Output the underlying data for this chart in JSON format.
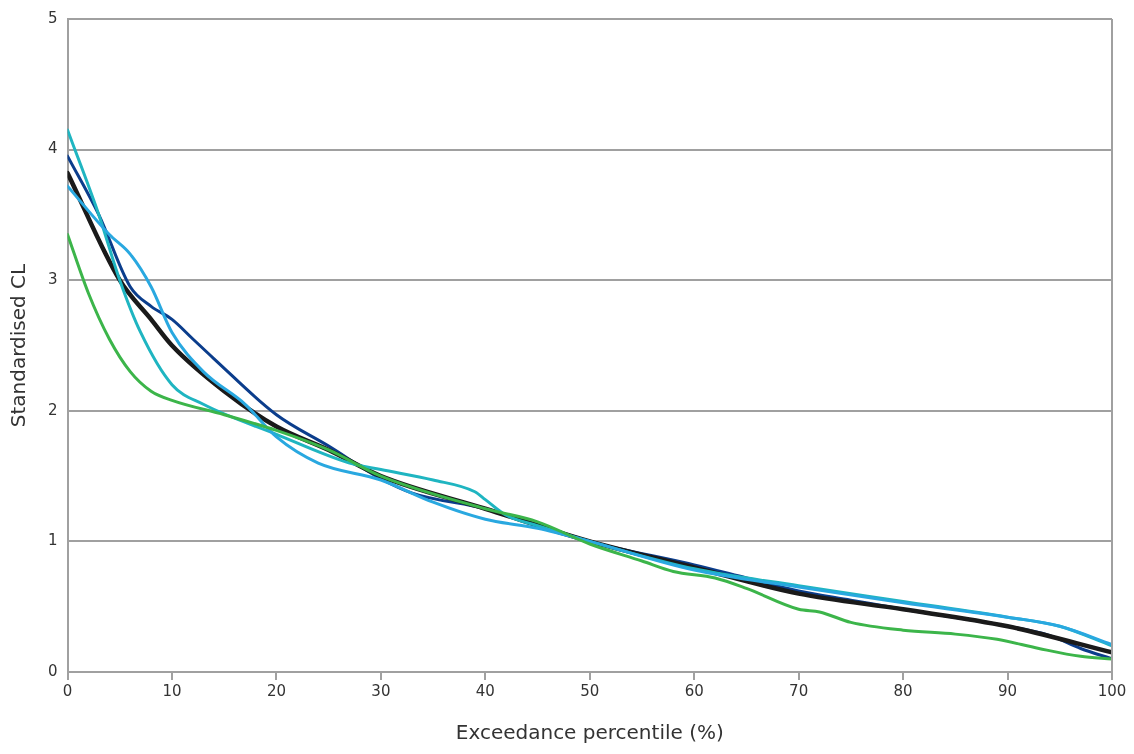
{
  "chart_data": {
    "type": "line",
    "xlabel": "Exceedance percentile (%)",
    "ylabel": "Standardised CL",
    "xlim": [
      0,
      100
    ],
    "xticks": [
      0,
      10,
      20,
      30,
      40,
      50,
      60,
      70,
      80,
      90,
      100
    ],
    "ylim": [
      0,
      5
    ],
    "yticks": [
      0,
      1,
      2,
      3,
      4,
      5
    ],
    "grid": "y",
    "legend": false,
    "marker": "none",
    "line_style": "solid",
    "series": [
      {
        "color": "#3cb54a",
        "x": [
          0,
          2,
          4,
          6,
          8,
          10,
          15,
          20,
          25,
          30,
          40,
          45,
          50,
          55,
          58,
          62,
          65,
          70,
          72,
          75,
          80,
          85,
          89,
          93,
          97,
          100
        ],
        "values": [
          3.35,
          2.9,
          2.55,
          2.3,
          2.15,
          2.08,
          1.97,
          1.85,
          1.7,
          1.5,
          1.25,
          1.15,
          0.98,
          0.85,
          0.77,
          0.72,
          0.64,
          0.48,
          0.46,
          0.38,
          0.32,
          0.29,
          0.25,
          0.18,
          0.12,
          0.1
        ]
      },
      {
        "color": "#29a8e0",
        "x": [
          0,
          4,
          6,
          8,
          10,
          13,
          17,
          20,
          24,
          30,
          35,
          40,
          45,
          50,
          60,
          70,
          80,
          90,
          95,
          100
        ],
        "values": [
          3.72,
          3.35,
          3.2,
          2.95,
          2.6,
          2.3,
          2.05,
          1.8,
          1.6,
          1.47,
          1.3,
          1.17,
          1.1,
          1.0,
          0.78,
          0.65,
          0.53,
          0.42,
          0.35,
          0.21
        ]
      },
      {
        "color": "#1fb5c1",
        "x": [
          0,
          3,
          5,
          7,
          10,
          13,
          20,
          27,
          30,
          35,
          39,
          40,
          42,
          45,
          50,
          60,
          70,
          80,
          90,
          95,
          100
        ],
        "values": [
          4.15,
          3.5,
          3.0,
          2.6,
          2.2,
          2.05,
          1.82,
          1.6,
          1.55,
          1.47,
          1.38,
          1.32,
          1.2,
          1.12,
          1.0,
          0.79,
          0.66,
          0.54,
          0.42,
          0.35,
          0.2
        ]
      },
      {
        "color": "#1a1a1a",
        "x": [
          0,
          5,
          8,
          10,
          15,
          20,
          25,
          30,
          40,
          50,
          60,
          70,
          80,
          90,
          100
        ],
        "values": [
          3.82,
          3.0,
          2.7,
          2.5,
          2.15,
          1.88,
          1.7,
          1.5,
          1.25,
          1.0,
          0.8,
          0.6,
          0.48,
          0.35,
          0.15
        ]
      },
      {
        "color": "#0b3d8c",
        "x": [
          0,
          3,
          6,
          8,
          10,
          12,
          14,
          20,
          25,
          30,
          33,
          40,
          45,
          50,
          60,
          65,
          70,
          75,
          80,
          90,
          94,
          97,
          100
        ],
        "values": [
          3.95,
          3.5,
          2.95,
          2.8,
          2.7,
          2.55,
          2.4,
          1.97,
          1.73,
          1.48,
          1.37,
          1.25,
          1.13,
          1.0,
          0.82,
          0.72,
          0.62,
          0.55,
          0.48,
          0.35,
          0.28,
          0.18,
          0.1
        ]
      }
    ]
  }
}
